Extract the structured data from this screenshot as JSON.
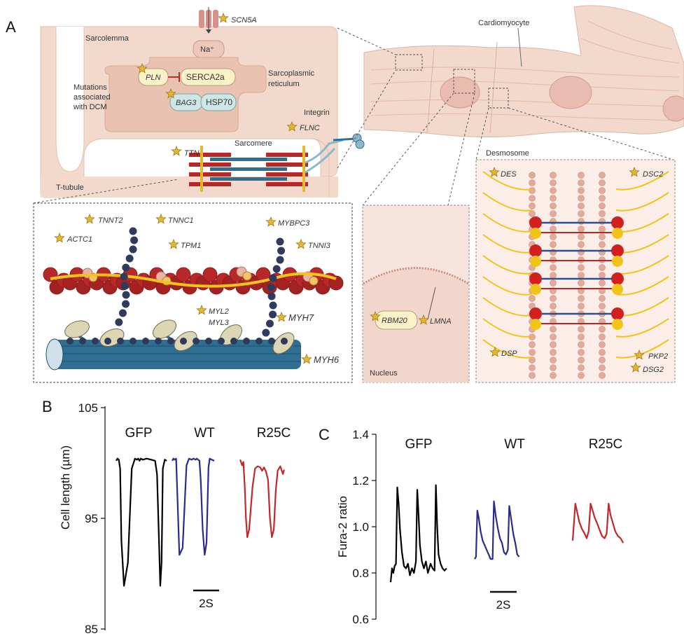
{
  "panels": {
    "a": "A",
    "b": "B",
    "c": "C"
  },
  "labels": {
    "sarcolemma": "Sarcolemma",
    "na": "Na⁺",
    "serca": "SERCA2a",
    "sr1": "Sarcoplasmic",
    "sr2": "reticulum",
    "dcm1": "Mutations",
    "dcm2": "associated",
    "dcm3": "with DCM",
    "hsp": "HSP70",
    "integrin": "Integrin",
    "sarcomere": "Sarcomere",
    "ttubule": "T-tubule",
    "cardiomyocyte": "Cardiomyocyte",
    "desmosome": "Desmosome",
    "nucleus": "Nucleus"
  },
  "genes": {
    "scn5a": "SCN5A",
    "pln": "PLN",
    "bag3": "BAG3",
    "flnc": "FLNC",
    "ttn": "TTN",
    "tnnt2": "TNNT2",
    "tnnc1": "TNNC1",
    "mybpc3": "MYBPC3",
    "actc1": "ACTC1",
    "tpm1": "TPM1",
    "tnni3": "TNNI3",
    "myl2": "MYL2",
    "myl3": "MYL3",
    "myh7": "MYH7",
    "myh6": "MYH6",
    "rbm20": "RBM20",
    "lmna": "LMNA",
    "des": "DES",
    "dsc2": "DSC2",
    "dsp": "DSP",
    "pkp2": "PKP2",
    "dsg2": "DSG2"
  },
  "colors": {
    "cell_pink": "#f2d9cc",
    "cell_pink_dark": "#e9c2b1",
    "actin_red": "#b82828",
    "myosin_blue": "#2e6f93",
    "dark_blue_beads": "#2f3b5c",
    "yellow": "#f0c419",
    "star": "#e7b732",
    "gfp": "#000000",
    "wt": "#2b2b8c",
    "r25c": "#c0282d"
  },
  "chart_data": [
    {
      "type": "line",
      "panel": "B",
      "ylabel": "Cell length (µm)",
      "ylim": [
        85,
        105
      ],
      "yticks": [
        85,
        95,
        105
      ],
      "scale_bar": "2S",
      "series": [
        {
          "name": "GFP",
          "color": "#000000",
          "x": [
            0,
            0.1,
            0.2,
            0.3,
            0.4,
            0.6,
            0.9,
            1.2,
            1.45,
            1.6,
            1.7,
            1.8,
            1.9,
            2.05,
            2.35,
            2.7,
            3.0,
            3.15,
            3.3,
            3.4,
            3.5,
            3.6,
            3.75,
            3.9
          ],
          "y": [
            100.2,
            100.4,
            100.3,
            99.5,
            93,
            88.9,
            91,
            99.5,
            100.4,
            100.3,
            100.4,
            100.2,
            100.4,
            100.3,
            100.4,
            100.3,
            100.2,
            99,
            93,
            88.9,
            91,
            99.5,
            100.3,
            100.2
          ]
        },
        {
          "name": "WT",
          "color": "#2b2b8c",
          "x": [
            0,
            0.1,
            0.2,
            0.3,
            0.4,
            0.55,
            0.8,
            1.1,
            1.3,
            1.5,
            1.65,
            1.8,
            1.9,
            2.0,
            2.1,
            2.2,
            2.35,
            2.5,
            2.65,
            2.8,
            2.9,
            3.05,
            3.25
          ],
          "y": [
            100.2,
            100.4,
            100.3,
            100.4,
            97,
            91.7,
            92.3,
            99.8,
            100.4,
            100.3,
            100.4,
            100.3,
            100.4,
            100.3,
            100.2,
            98.5,
            94,
            91.7,
            92.8,
            99.6,
            100.4,
            100.3,
            100.2
          ]
        },
        {
          "name": "R25C",
          "color": "#c0282d",
          "x": [
            0,
            0.15,
            0.25,
            0.35,
            0.45,
            0.55,
            0.7,
            0.95,
            1.15,
            1.35,
            1.55,
            1.7,
            1.85,
            2.0,
            2.15,
            2.3,
            2.45,
            2.6,
            2.75,
            2.9,
            3.1,
            3.3,
            3.4
          ],
          "y": [
            100.3,
            99.8,
            100.1,
            98,
            95,
            93.3,
            94,
            97.8,
            99.5,
            99.7,
            99.6,
            99.3,
            99.6,
            99.2,
            98.5,
            95,
            93.3,
            94,
            97.5,
            99.3,
            99.7,
            99.0,
            99.4
          ]
        }
      ]
    },
    {
      "type": "line",
      "panel": "C",
      "ylabel": "Fura-2 ratio",
      "ylim": [
        0.6,
        1.4
      ],
      "yticks": [
        0.6,
        0.8,
        1.0,
        1.2,
        1.4
      ],
      "scale_bar": "2S",
      "series": [
        {
          "name": "GFP",
          "color": "#000000",
          "x": [
            0,
            0.1,
            0.2,
            0.3,
            0.4,
            0.5,
            0.6,
            0.7,
            0.85,
            1.0,
            1.15,
            1.3,
            1.45,
            1.6,
            1.75,
            1.9,
            2.0,
            2.1,
            2.2,
            2.35,
            2.5,
            2.65,
            2.8,
            3.0,
            3.15,
            3.3,
            3.4,
            3.5,
            3.6,
            3.75,
            3.9,
            4.05,
            4.2
          ],
          "y": [
            0.76,
            0.82,
            0.8,
            0.83,
            0.84,
            1.17,
            1.1,
            0.99,
            0.89,
            0.83,
            0.82,
            0.84,
            0.79,
            0.82,
            0.8,
            0.85,
            1.16,
            1.05,
            0.92,
            0.85,
            0.82,
            0.85,
            0.8,
            0.84,
            0.82,
            0.81,
            1.18,
            1.0,
            0.88,
            0.84,
            0.82,
            0.81,
            0.82
          ]
        },
        {
          "name": "WT",
          "color": "#2b2b8c",
          "x": [
            0,
            0.1,
            0.2,
            0.3,
            0.45,
            0.6,
            0.75,
            0.9,
            1.05,
            1.2,
            1.35,
            1.45,
            1.6,
            1.75,
            1.9,
            2.05,
            2.2,
            2.35,
            2.5,
            2.6,
            2.75,
            2.9,
            3.05,
            3.2,
            3.35
          ],
          "y": [
            0.86,
            0.87,
            1.07,
            1.04,
            0.98,
            0.94,
            0.92,
            0.9,
            0.88,
            0.86,
            0.86,
            1.11,
            1.04,
            0.99,
            0.95,
            0.93,
            0.89,
            0.88,
            0.9,
            1.09,
            1.03,
            0.97,
            0.93,
            0.88,
            0.87
          ]
        },
        {
          "name": "R25C",
          "color": "#c0282d",
          "x": [
            0,
            0.1,
            0.2,
            0.35,
            0.5,
            0.7,
            0.9,
            1.05,
            1.2,
            1.35,
            1.5,
            1.65,
            1.8,
            2.0,
            2.2,
            2.4,
            2.55,
            2.7,
            2.85,
            3.0,
            3.2,
            3.4,
            3.6,
            3.8
          ],
          "y": [
            0.94,
            1.02,
            1.1,
            1.06,
            1.02,
            0.99,
            0.97,
            0.95,
            0.98,
            1.1,
            1.07,
            1.04,
            1.02,
            0.99,
            0.96,
            0.95,
            0.97,
            1.1,
            1.05,
            1.02,
            0.98,
            0.96,
            0.95,
            0.93
          ]
        }
      ]
    }
  ]
}
